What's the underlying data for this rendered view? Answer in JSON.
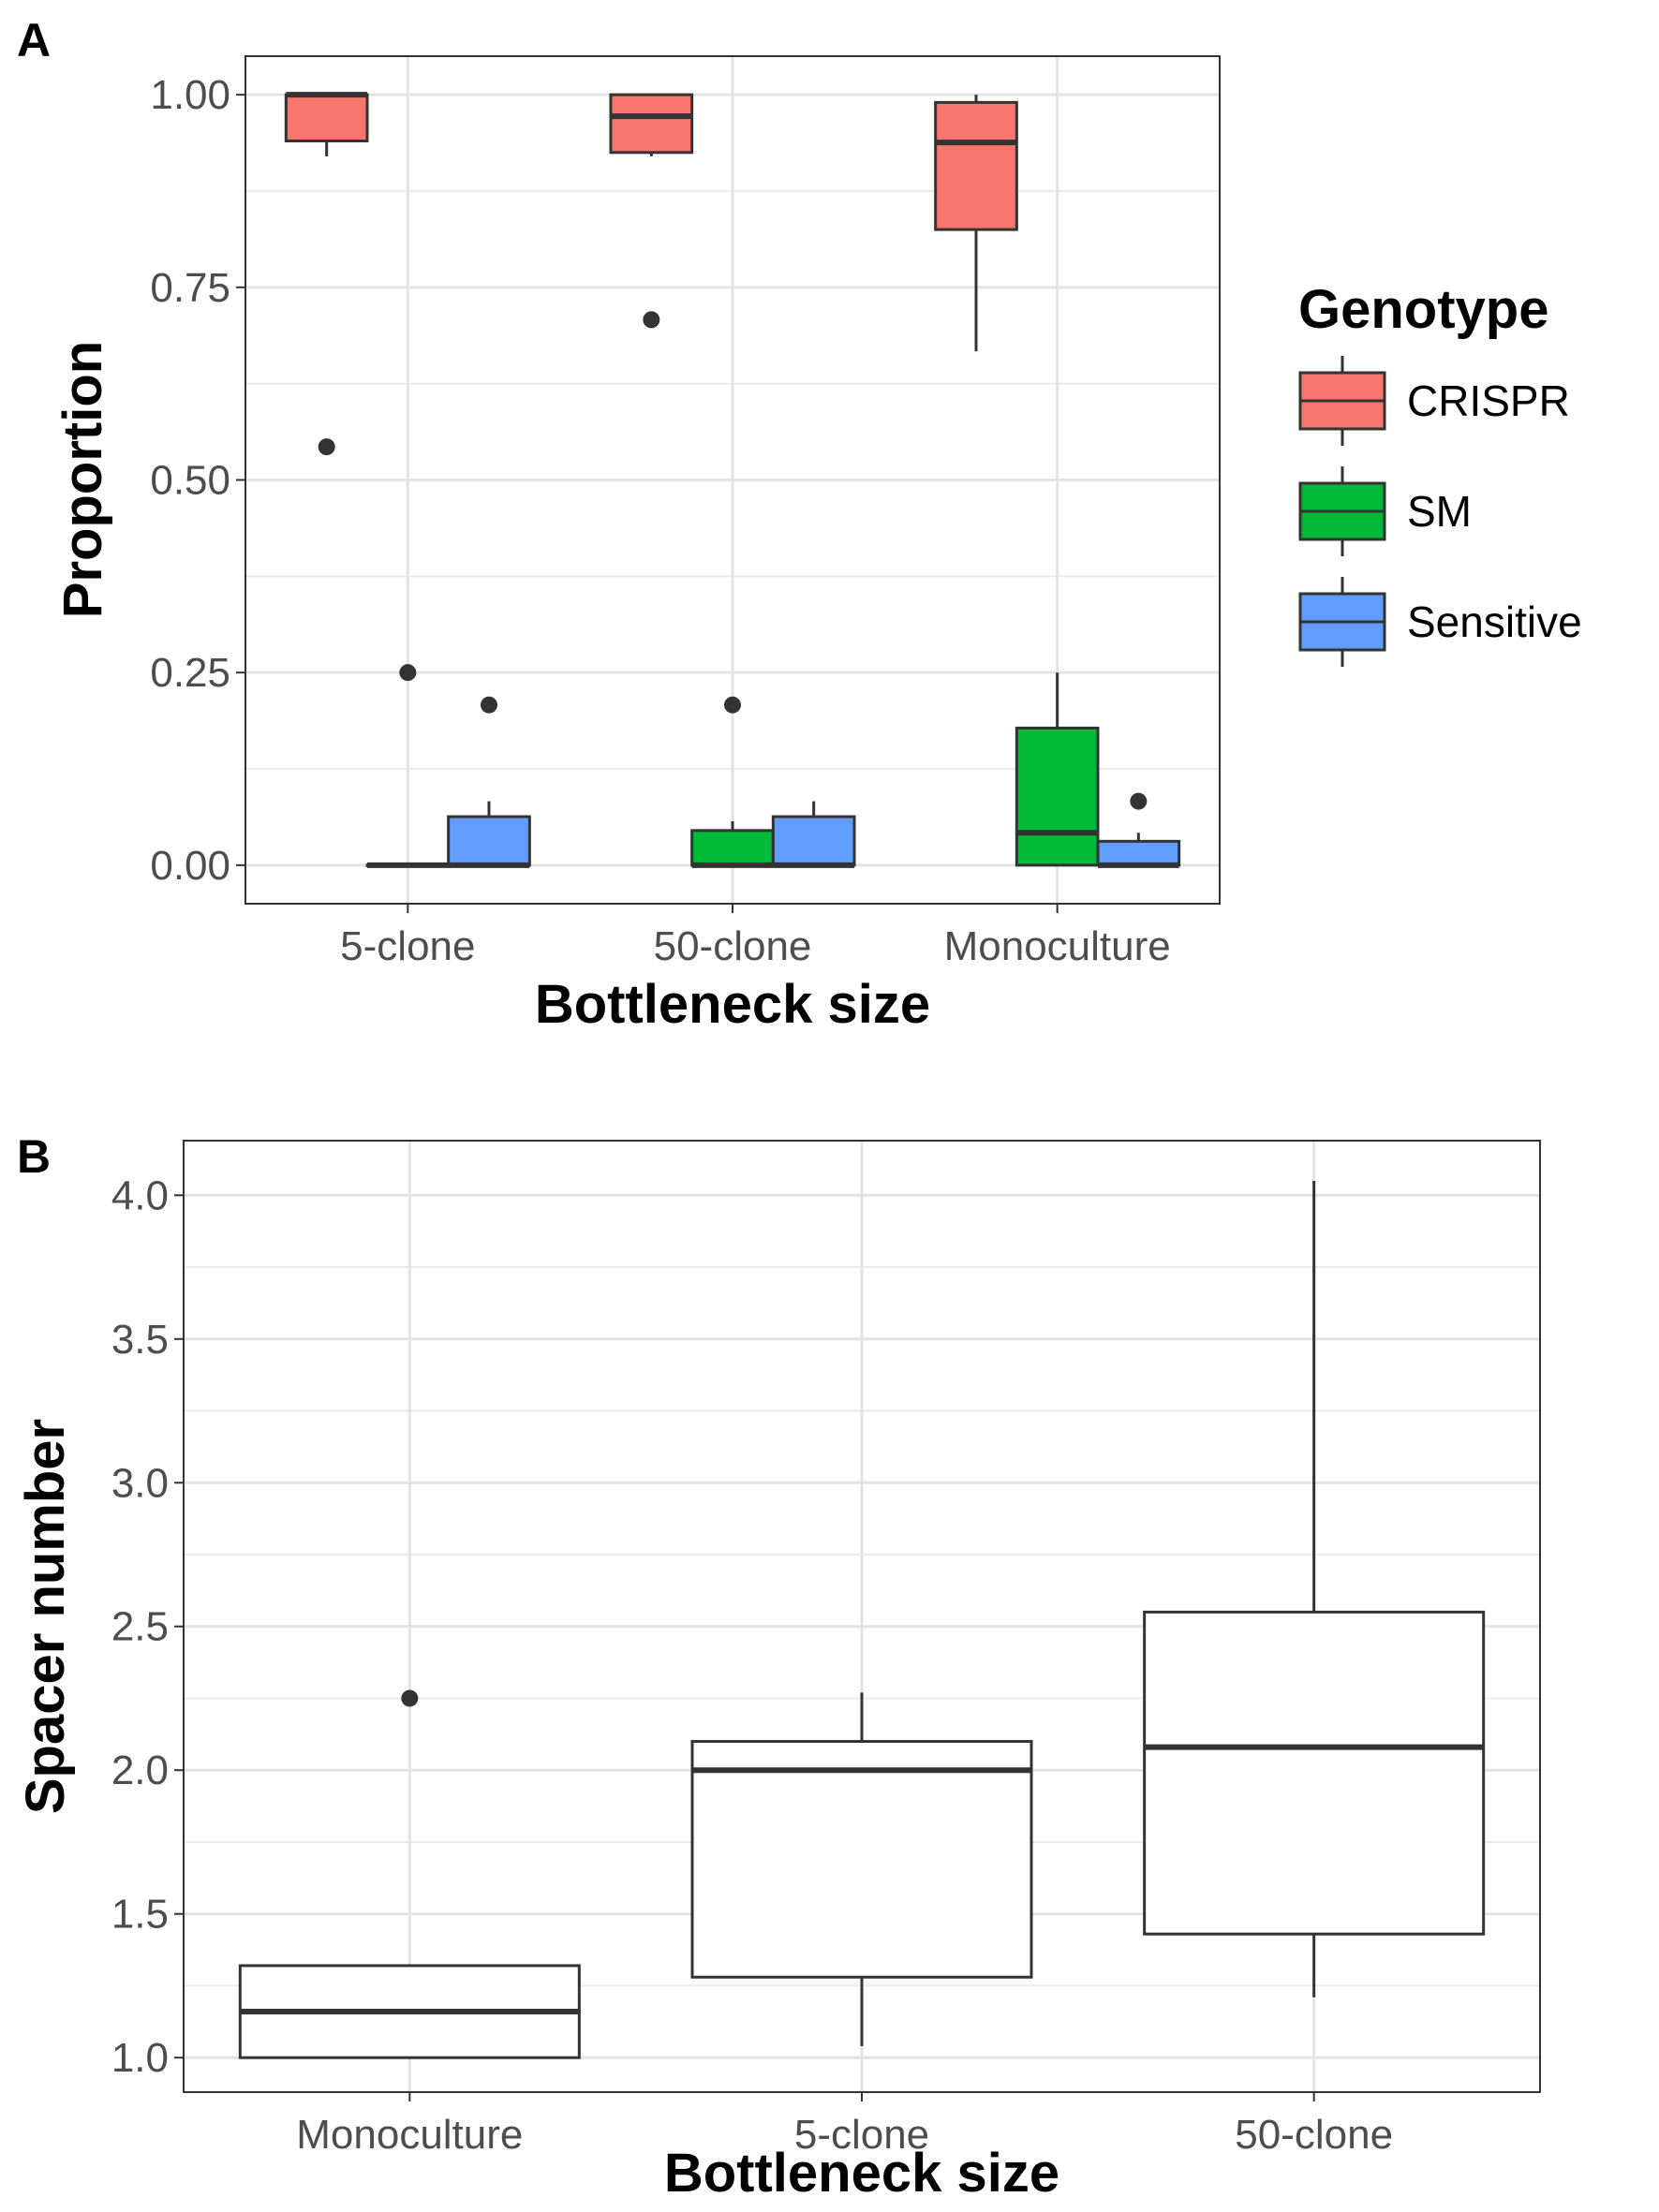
{
  "chart_data": [
    {
      "type": "box",
      "panel_label": "A",
      "xlabel": "Bottleneck size",
      "ylabel": "Proportion",
      "ylim": [
        -0.05,
        1.05
      ],
      "yticks": [
        "0.00",
        "0.25",
        "0.50",
        "0.75",
        "1.00"
      ],
      "ytick_values": [
        0,
        0.25,
        0.5,
        0.75,
        1.0
      ],
      "categories": [
        "5-clone",
        "50-clone",
        "Monoculture"
      ],
      "grid": true,
      "legend": {
        "title": "Genotype",
        "position": "right",
        "entries": [
          {
            "label": "CRISPR",
            "color": "#F8766D"
          },
          {
            "label": "SM",
            "color": "#00BA38"
          },
          {
            "label": "Sensitive",
            "color": "#619CFF"
          }
        ]
      },
      "series": [
        {
          "name": "CRISPR",
          "color": "#F8766D",
          "boxes": [
            {
              "category": "5-clone",
              "whisker_low": 0.92,
              "q1": 0.94,
              "median": 1.0,
              "q3": 1.0,
              "whisker_high": 1.0,
              "outliers": [
                0.543
              ]
            },
            {
              "category": "50-clone",
              "whisker_low": 0.92,
              "q1": 0.925,
              "median": 0.972,
              "q3": 1.0,
              "whisker_high": 1.0,
              "outliers": [
                0.708
              ]
            },
            {
              "category": "Monoculture",
              "whisker_low": 0.667,
              "q1": 0.825,
              "median": 0.938,
              "q3": 0.99,
              "whisker_high": 1.0,
              "outliers": []
            }
          ]
        },
        {
          "name": "SM",
          "color": "#00BA38",
          "boxes": [
            {
              "category": "5-clone",
              "whisker_low": 0.0,
              "q1": 0.0,
              "median": 0.0,
              "q3": 0.0,
              "whisker_high": 0.0,
              "outliers": [
                0.25
              ]
            },
            {
              "category": "50-clone",
              "whisker_low": 0.0,
              "q1": 0.0,
              "median": 0.0,
              "q3": 0.045,
              "whisker_high": 0.057,
              "outliers": [
                0.208
              ]
            },
            {
              "category": "Monoculture",
              "whisker_low": 0.0,
              "q1": 0.0,
              "median": 0.042,
              "q3": 0.178,
              "whisker_high": 0.25,
              "outliers": []
            }
          ]
        },
        {
          "name": "Sensitive",
          "color": "#619CFF",
          "boxes": [
            {
              "category": "5-clone",
              "whisker_low": 0.0,
              "q1": 0.0,
              "median": 0.0,
              "q3": 0.063,
              "whisker_high": 0.083,
              "outliers": [
                0.208
              ]
            },
            {
              "category": "50-clone",
              "whisker_low": 0.0,
              "q1": 0.0,
              "median": 0.0,
              "q3": 0.063,
              "whisker_high": 0.083,
              "outliers": []
            },
            {
              "category": "Monoculture",
              "whisker_low": 0.0,
              "q1": 0.0,
              "median": 0.0,
              "q3": 0.031,
              "whisker_high": 0.042,
              "outliers": [
                0.083
              ]
            }
          ]
        }
      ]
    },
    {
      "type": "box",
      "panel_label": "B",
      "xlabel": "Bottleneck size",
      "ylabel": "Spacer number",
      "ylim": [
        0.88,
        4.19
      ],
      "yticks": [
        "1.0",
        "1.5",
        "2.0",
        "2.5",
        "3.0",
        "3.5",
        "4.0"
      ],
      "ytick_values": [
        1.0,
        1.5,
        2.0,
        2.5,
        3.0,
        3.5,
        4.0
      ],
      "categories": [
        "Monoculture",
        "5-clone",
        "50-clone"
      ],
      "grid": true,
      "series": [
        {
          "color": "#FFFFFF",
          "boxes": [
            {
              "category": "Monoculture",
              "whisker_low": 1.0,
              "q1": 1.0,
              "median": 1.16,
              "q3": 1.32,
              "whisker_high": 1.32,
              "outliers": [
                2.25
              ]
            },
            {
              "category": "5-clone",
              "whisker_low": 1.04,
              "q1": 1.28,
              "median": 2.0,
              "q3": 2.1,
              "whisker_high": 2.27,
              "outliers": []
            },
            {
              "category": "50-clone",
              "whisker_low": 1.21,
              "q1": 1.43,
              "median": 2.08,
              "q3": 2.55,
              "whisker_high": 4.05,
              "outliers": []
            }
          ]
        }
      ]
    }
  ]
}
